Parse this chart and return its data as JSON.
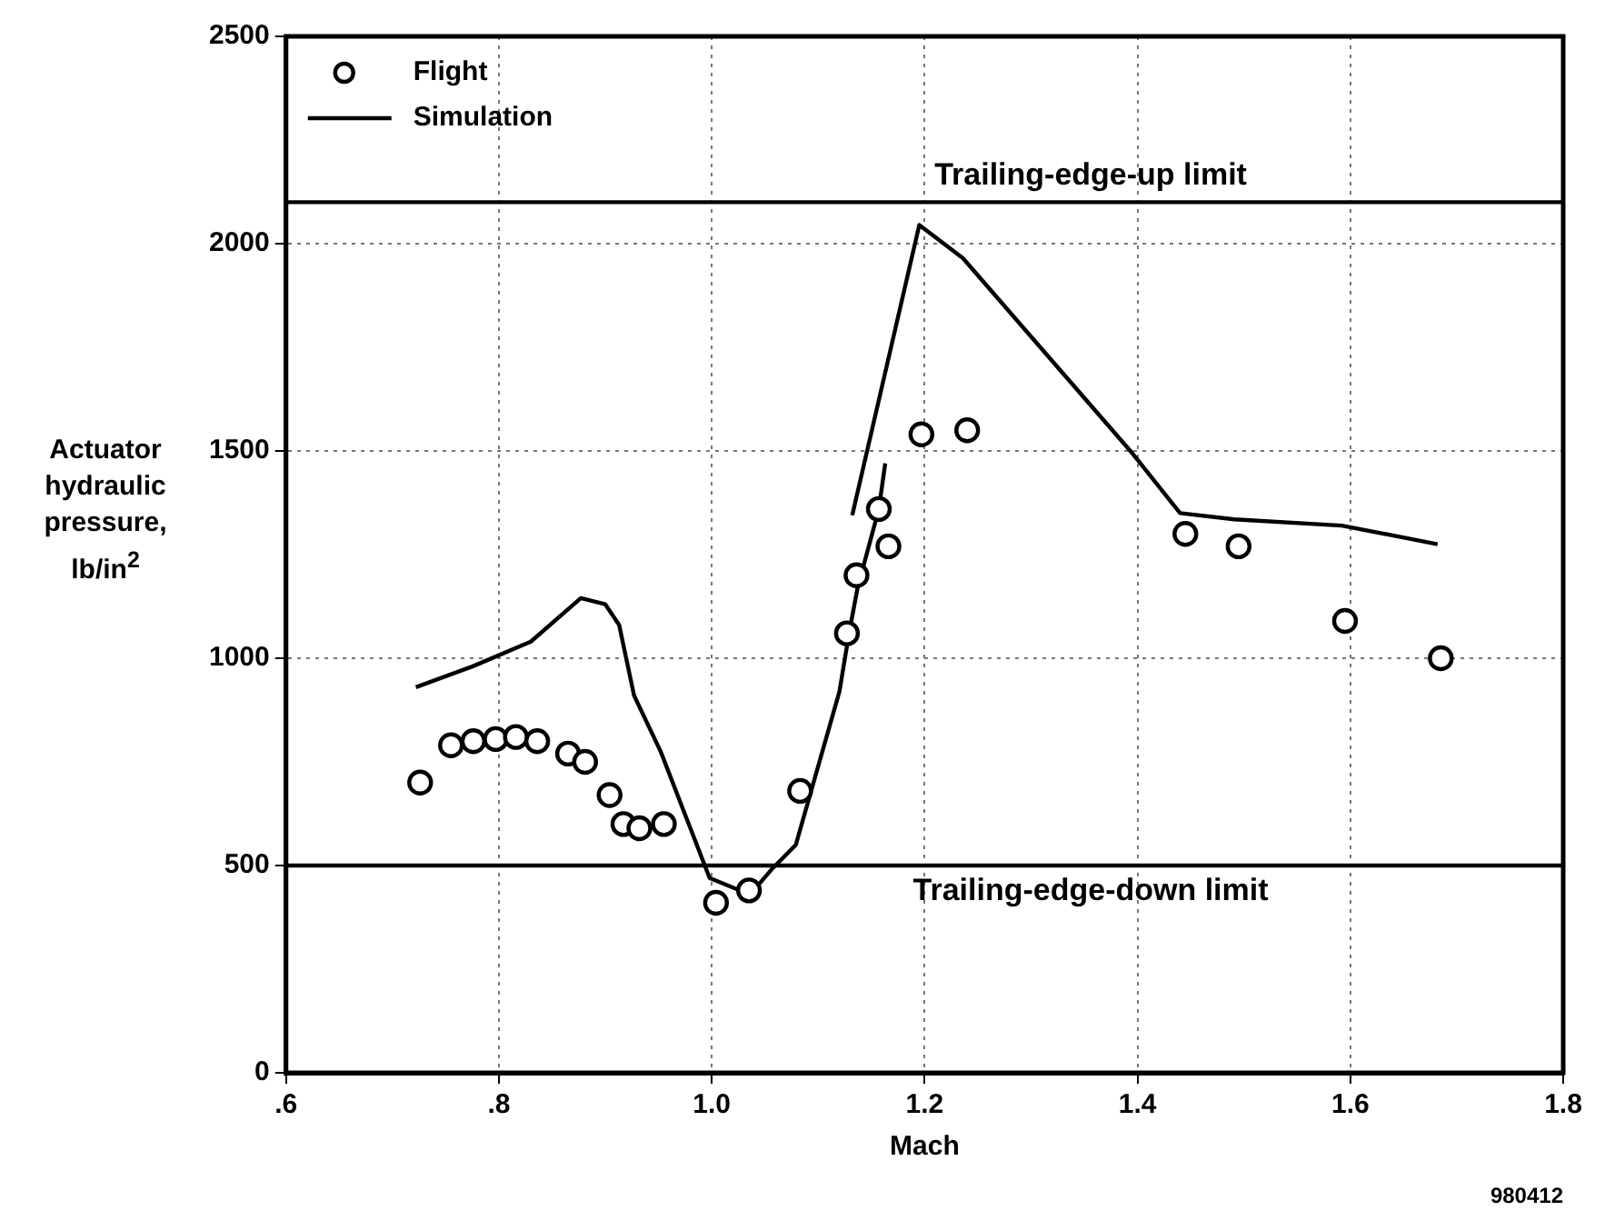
{
  "chart_data": {
    "type": "scatter",
    "xlabel": "Mach",
    "ylabel": "Actuator hydraulic pressure, lb/in$^{2}$",
    "xlim": [
      0.6,
      1.8
    ],
    "xticks": [
      {
        "value": 0.6,
        "label": ".6"
      },
      {
        "value": 0.8,
        "label": ".8"
      },
      {
        "value": 1.0,
        "label": "1.0"
      },
      {
        "value": 1.2,
        "label": "1.2"
      },
      {
        "value": 1.4,
        "label": "1.4"
      },
      {
        "value": 1.6,
        "label": "1.6"
      },
      {
        "value": 1.8,
        "label": "1.8"
      }
    ],
    "ylim": [
      0,
      2500
    ],
    "yticks": [
      0,
      500,
      1000,
      1500,
      2000,
      2500
    ],
    "grid": true,
    "legend": "top left",
    "series": [
      {
        "name": "Flight",
        "type": "scatter",
        "marker": "circle",
        "color": "#000000",
        "x": [
          0.726,
          0.755,
          0.776,
          0.797,
          0.816,
          0.836,
          0.865,
          0.881,
          0.904,
          0.917,
          0.932,
          0.955,
          1.004,
          1.035,
          1.083,
          1.127,
          1.136,
          1.157,
          1.166,
          1.197,
          1.24,
          1.445,
          1.495,
          1.595,
          1.685
        ],
        "values": [
          700,
          790,
          800,
          805,
          810,
          800,
          770,
          750,
          670,
          600,
          590,
          600,
          410,
          440,
          680,
          1060,
          1200,
          1360,
          1270,
          1540,
          1550,
          1300,
          1270,
          1090,
          1000
        ]
      },
      {
        "name": "Simulation",
        "type": "line",
        "marker": "none",
        "line_style": "solid",
        "color": "#000000",
        "x": [
          0.722,
          0.775,
          0.83,
          0.877,
          0.9,
          0.913,
          0.927,
          0.952,
          0.998,
          1.036,
          1.056,
          1.079,
          1.12,
          1.129,
          1.137,
          1.157,
          1.163,
          1.15,
          1.132,
          1.195,
          1.236,
          1.395,
          1.44,
          1.491,
          1.592,
          1.682
        ],
        "values": [
          930,
          980,
          1040,
          1145,
          1130,
          1080,
          910,
          775,
          470,
          430,
          490,
          550,
          920,
          1060,
          1170,
          1360,
          1470,
          null,
          1345,
          2045,
          1965,
          1495,
          1350,
          1335,
          1320,
          1275
        ]
      }
    ],
    "ref_lines": [
      {
        "axis": "y",
        "value": 2100,
        "label": "Trailing-edge-up limit",
        "color": "#000000",
        "line_style": "solid"
      },
      {
        "axis": "y",
        "value": 500,
        "label": "Trailing-edge-down limit",
        "color": "#000000",
        "line_style": "solid"
      }
    ],
    "annotations": [
      "980412"
    ]
  }
}
